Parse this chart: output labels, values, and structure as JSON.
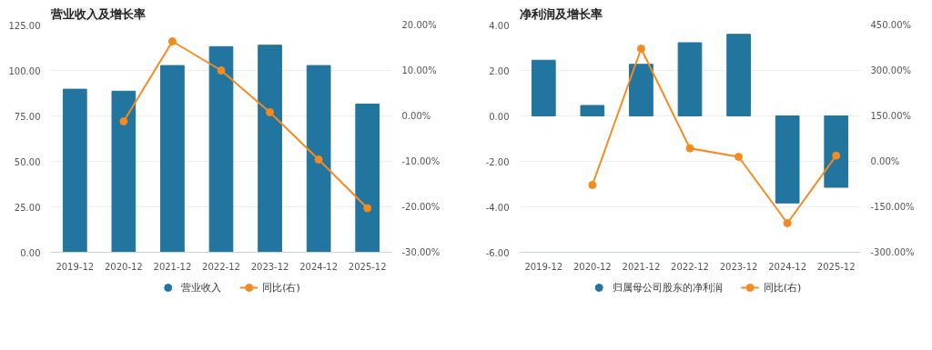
{
  "chart_data": [
    {
      "type": "bar",
      "title": "营业收入及增长率",
      "categories": [
        "2019-12",
        "2020-12",
        "2021-12",
        "2022-12",
        "2023-12",
        "2024-12",
        "2025-12"
      ],
      "series": [
        {
          "name": "营业收入",
          "color": "#21759f",
          "values": [
            89.7,
            88.6,
            102.7,
            113.1,
            113.9,
            102.7,
            81.5
          ]
        },
        {
          "name": "同比(右)",
          "type": "line",
          "axis": "y2",
          "color": "#f58a1f",
          "values": [
            null,
            -1.2,
            16.4,
            10.0,
            0.8,
            -9.6,
            -20.3
          ]
        }
      ],
      "ylim": [
        0,
        125
      ],
      "yticks": [
        {
          "value": 0,
          "label": "0.00"
        },
        {
          "value": 25,
          "label": "25.00"
        },
        {
          "value": 50,
          "label": "50.00"
        },
        {
          "value": 75,
          "label": "75.00"
        },
        {
          "value": 100,
          "label": "100.00"
        },
        {
          "value": 125,
          "label": "125.00"
        }
      ],
      "y2lim": [
        -30,
        20
      ],
      "y2ticks": [
        {
          "value": -30,
          "label": "-30.00%"
        },
        {
          "value": -20,
          "label": "-20.00%"
        },
        {
          "value": -10,
          "label": "-10.00%"
        },
        {
          "value": 0,
          "label": "0.00%"
        },
        {
          "value": 10,
          "label": "10.00%"
        },
        {
          "value": 20,
          "label": "20.00%"
        }
      ],
      "grid": "y",
      "legend": "bottom",
      "marker": "circle"
    },
    {
      "type": "bar",
      "title": "净利润及增长率",
      "categories": [
        "2019-12",
        "2020-12",
        "2021-12",
        "2022-12",
        "2023-12",
        "2024-12",
        "2025-12"
      ],
      "series": [
        {
          "name": "归属母公司股东的净利润",
          "color": "#21759f",
          "values": [
            2.45,
            0.46,
            2.27,
            3.22,
            3.59,
            -3.83,
            -3.14
          ]
        },
        {
          "name": "同比(右)",
          "type": "line",
          "axis": "y2",
          "color": "#f58a1f",
          "values": [
            null,
            -78,
            372,
            43,
            15,
            -204,
            19
          ]
        }
      ],
      "ylim": [
        -6,
        4
      ],
      "yticks": [
        {
          "value": -6,
          "label": "-6.00"
        },
        {
          "value": -4,
          "label": "-4.00"
        },
        {
          "value": -2,
          "label": "-2.00"
        },
        {
          "value": 0,
          "label": "0.00"
        },
        {
          "value": 2,
          "label": "2.00"
        },
        {
          "value": 4,
          "label": "4.00"
        }
      ],
      "y2lim": [
        -300,
        450
      ],
      "y2ticks": [
        {
          "value": -300,
          "label": "-300.00%"
        },
        {
          "value": -150,
          "label": "-150.00%"
        },
        {
          "value": 0,
          "label": "0.00%"
        },
        {
          "value": 150,
          "label": "150.00%"
        },
        {
          "value": 300,
          "label": "300.00%"
        },
        {
          "value": 450,
          "label": "450.00%"
        }
      ],
      "grid": "y",
      "legend": "bottom",
      "marker": "circle"
    }
  ]
}
